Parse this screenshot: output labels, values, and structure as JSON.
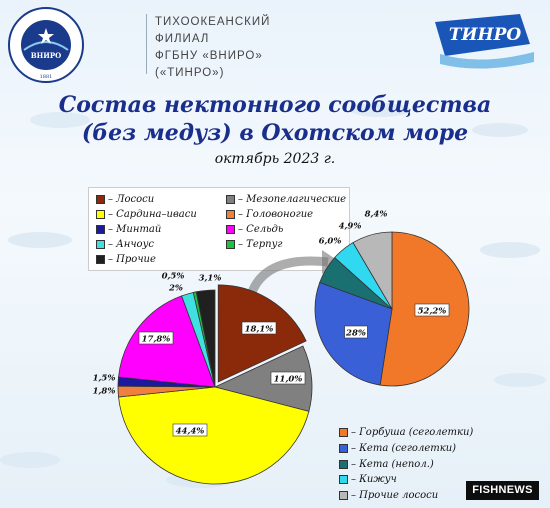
{
  "header": {
    "line1": "ТИХООКЕАНСКИЙ",
    "line2": "ФИЛИАЛ",
    "line3": "ФГБНУ «ВНИРО»",
    "line4": "(«ТИНРО»)",
    "brand": "ТИНРО",
    "seal_text": "ВСЕРОССИЙСКИЙ НАУЧНО-ИССЛЕДОВАТЕЛЬСКИЙ ИНСТИТУТ РЫБНОГО ХОЗЯЙСТВА И ОКЕАНОГРАФИИ",
    "seal_center": "ВНИРО",
    "seal_year": "1881"
  },
  "title_line1": "Состав нектонного сообщества",
  "title_line2": "(без медуз) в Охотском море",
  "subtitle": "октябрь 2023 г.",
  "watermark": "FISHNEWS",
  "chart_data": [
    {
      "type": "pie",
      "slices": [
        {
          "name": "Лососи",
          "value": 18.1,
          "label": "18,1%",
          "color": "#8b2a0a"
        },
        {
          "name": "Мезопелагические",
          "value": 11.0,
          "label": "11,0%",
          "color": "#808080"
        },
        {
          "name": "Сардина-иваси",
          "value": 44.4,
          "label": "44,4%",
          "color": "#ffff00"
        },
        {
          "name": "Головоногие",
          "value": 1.8,
          "label": "1,8%",
          "color": "#f08040"
        },
        {
          "name": "Минтай",
          "value": 1.5,
          "label": "1,5%",
          "color": "#1a1aa0"
        },
        {
          "name": "Сельдь",
          "value": 17.8,
          "label": "17,8%",
          "color": "#ff00ff"
        },
        {
          "name": "Анчоус",
          "value": 2.0,
          "label": "2%",
          "color": "#40e0e0"
        },
        {
          "name": "Терпуг",
          "value": 0.5,
          "label": "0,5%",
          "color": "#20c040"
        },
        {
          "name": "Прочие",
          "value": 3.1,
          "label": "3,1%",
          "color": "#202020"
        }
      ],
      "legend": [
        {
          "label": "– Лососи",
          "color": "#8b2a0a"
        },
        {
          "label": "– Мезопелагические",
          "color": "#808080"
        },
        {
          "label": "– Сардина–иваси",
          "color": "#ffff00"
        },
        {
          "label": "– Головоногие",
          "color": "#f08040"
        },
        {
          "label": "– Минтай",
          "color": "#1a1aa0"
        },
        {
          "label": "– Сельдь",
          "color": "#ff00ff"
        },
        {
          "label": "– Анчоус",
          "color": "#40e0e0"
        },
        {
          "label": "– Терпуг",
          "color": "#20c040"
        },
        {
          "label": "– Прочие",
          "color": "#202020"
        }
      ]
    },
    {
      "type": "pie",
      "slices": [
        {
          "name": "Горбуша (сеголетки)",
          "value": 52.2,
          "label": "52,2%",
          "color": "#f07828"
        },
        {
          "name": "Кета (сеголетки)",
          "value": 28,
          "label": "28%",
          "color": "#3a60d8"
        },
        {
          "name": "Кета (непол.)",
          "value": 6.0,
          "label": "6,0%",
          "color": "#1a7070"
        },
        {
          "name": "Кижуч",
          "value": 4.9,
          "label": "4,9%",
          "color": "#30d8f0"
        },
        {
          "name": "Прочие лососи",
          "value": 8.4,
          "label": "8,4%",
          "color": "#b8b8b8"
        }
      ],
      "legend": [
        {
          "label": "– Горбуша (сеголетки)",
          "color": "#f07828"
        },
        {
          "label": "– Кета (сеголетки)",
          "color": "#3a60d8"
        },
        {
          "label": "– Кета (непол.)",
          "color": "#1a7070"
        },
        {
          "label": "– Кижуч",
          "color": "#30d8f0"
        },
        {
          "label": "– Прочие лососи",
          "color": "#b8b8b8"
        }
      ]
    }
  ]
}
